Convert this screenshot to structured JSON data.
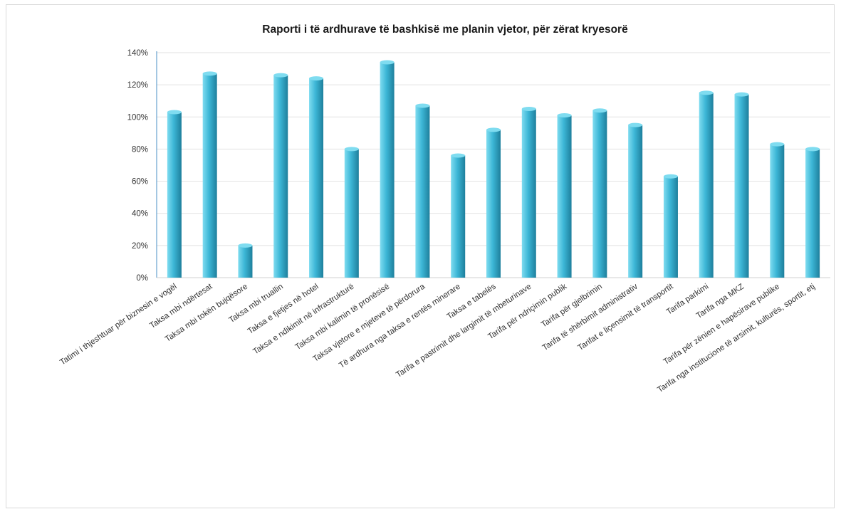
{
  "chart_data": {
    "type": "bar",
    "title": "Raporti i të ardhurave të bashkisë me planin vjetor, për zërat kryesorë",
    "xlabel": "",
    "ylabel": "",
    "ylim": [
      0,
      1.4
    ],
    "ytick_step": 0.2,
    "ytick_labels": [
      "0%",
      "20%",
      "40%",
      "60%",
      "80%",
      "100%",
      "120%",
      "140%"
    ],
    "grid": true,
    "legend": "none",
    "bar_color_light": "#7fdcf0",
    "bar_color": "#3cb6d6",
    "bar_color_dark": "#1e7f9c",
    "categories": [
      "Tatimi i thjeshtuar për biznesin e vogël",
      "Taksa mbi ndërtesat",
      "Taksa mbi tokën bujqësore",
      "Taksa mbi truallin",
      "Taksa e fjetjes në hotel",
      "Taksa e ndikimit në infrastrukturë",
      "Taksa mbi kalimin të pronësisë",
      "Taksa vjetore e mjeteve të përdorura",
      "Të ardhura nga taksa e rentës minerare",
      "Taksa e tabelës",
      "Tarifa e pastrimit dhe largimit të mbeturinave",
      "Tarifa për ndriçimin publik",
      "Tarifa për gjelbrimin",
      "Tarifa të shërbimit administrativ",
      "Tarifat e liçensimit të transportit",
      "Tarifa parkimi",
      "Tarifa nga MKZ",
      "Tarifa për zënien e hapësirave publike",
      "Tarifa nga institucione të arsimit, kulturës, sportit, etj"
    ],
    "values": [
      1.03,
      1.27,
      0.2,
      1.26,
      1.24,
      0.8,
      1.34,
      1.07,
      0.76,
      0.92,
      1.05,
      1.01,
      1.04,
      0.95,
      0.63,
      1.15,
      1.14,
      0.83,
      0.8
    ]
  }
}
